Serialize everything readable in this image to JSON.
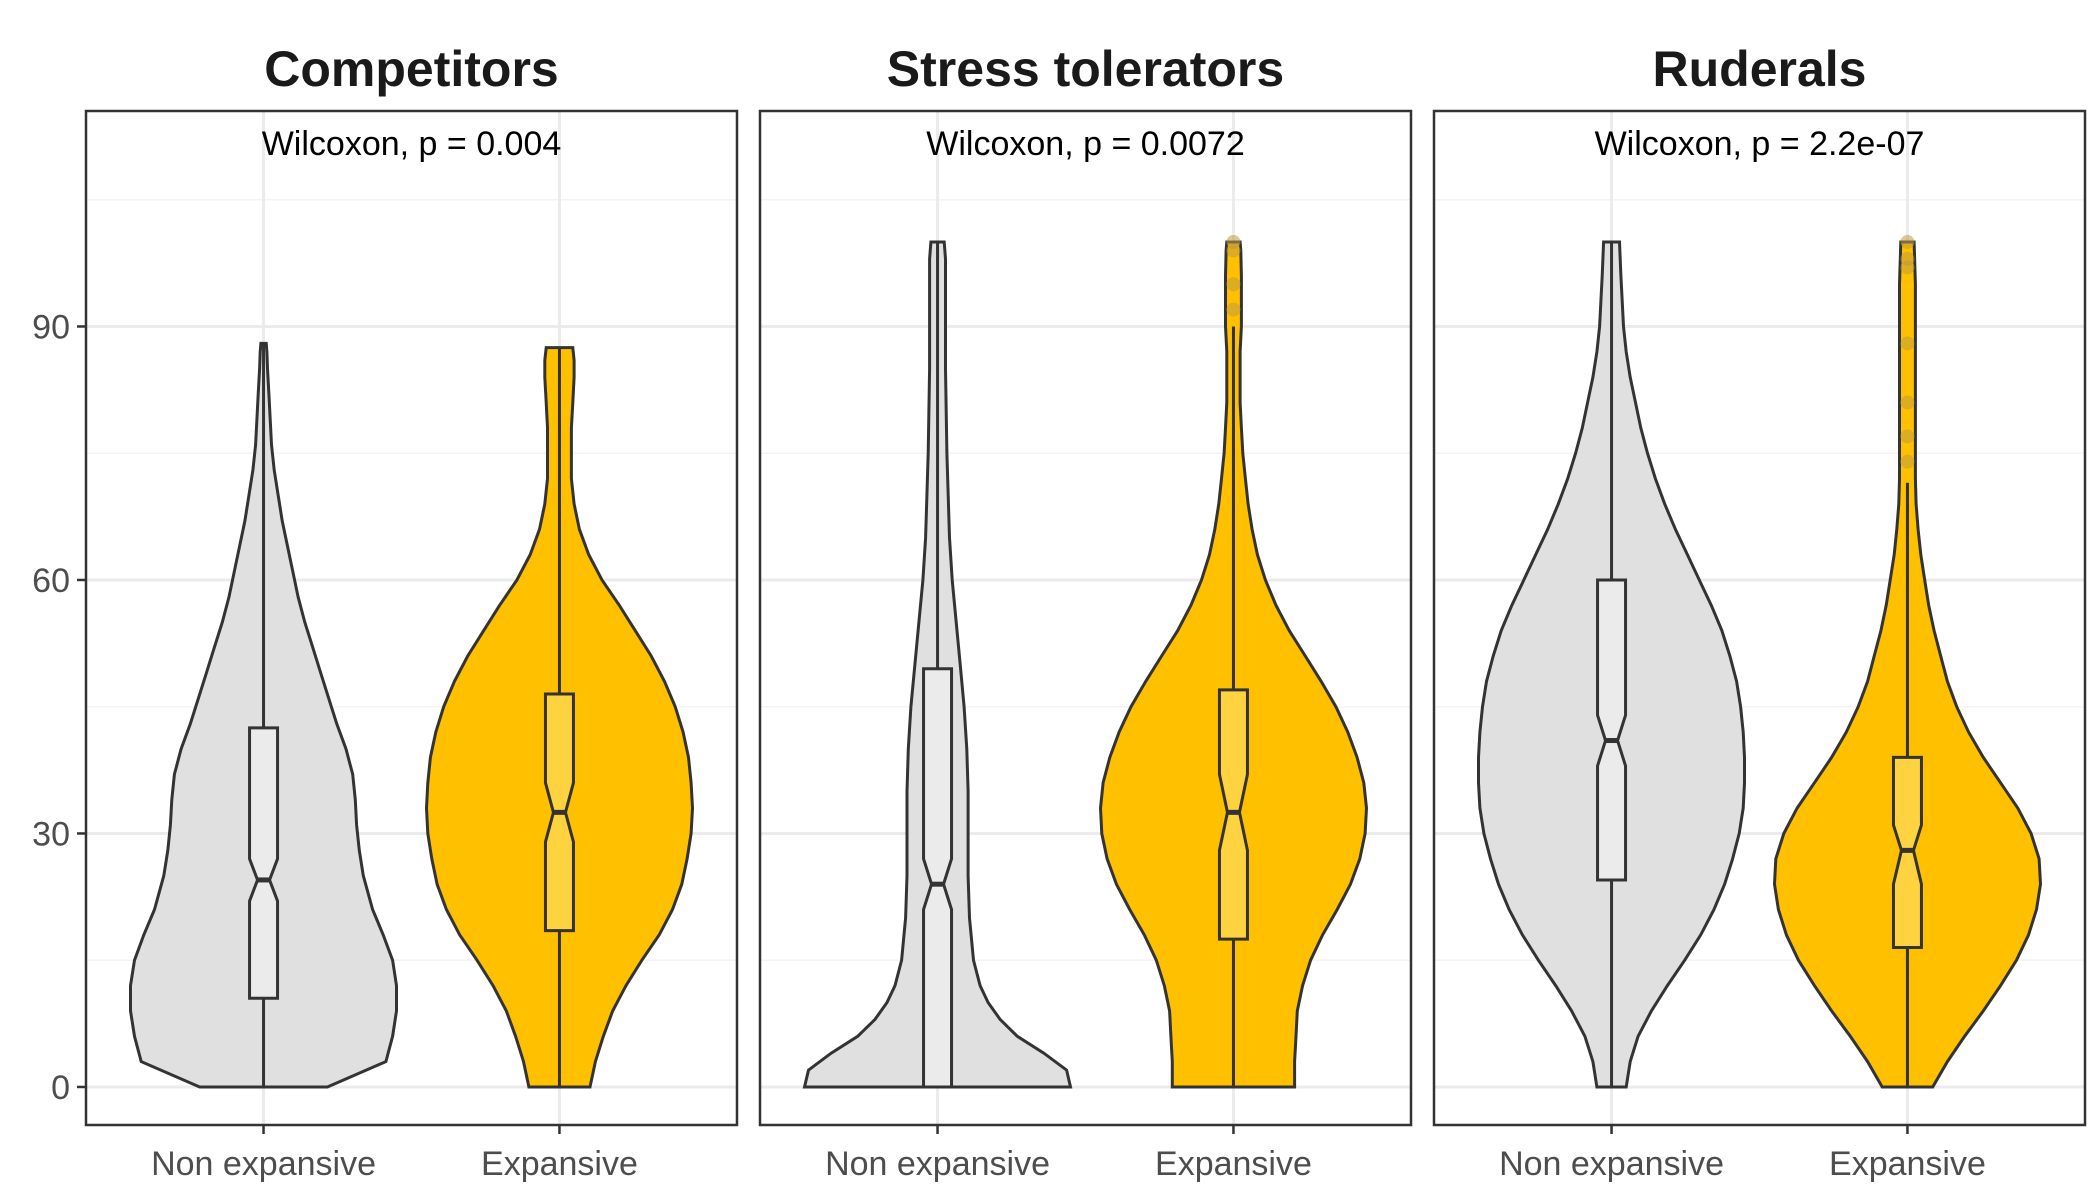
{
  "chart_data": [
    {
      "type": "violin",
      "title": "Competitors",
      "annotation": "Wilcoxon, p = 0.004",
      "categories": [
        "Non expansive",
        "Expansive"
      ],
      "ylim": [
        -4.5,
        115.5
      ],
      "yticks": [
        0,
        30,
        60,
        90
      ],
      "grid": true,
      "groups": [
        {
          "category": "Non expansive",
          "color": "#e0e0e0",
          "box": {
            "q1": 10.5,
            "median": 24.5,
            "q3": 42.5,
            "whisker_low": 0,
            "whisker_high": 88,
            "notch_low": 22,
            "notch_high": 27
          },
          "density": [
            [
              0,
              0.48
            ],
            [
              3,
              0.92
            ],
            [
              6,
              0.97
            ],
            [
              9,
              1.0
            ],
            [
              12,
              1.0
            ],
            [
              15,
              0.97
            ],
            [
              18,
              0.9
            ],
            [
              21,
              0.82
            ],
            [
              25,
              0.75
            ],
            [
              28,
              0.72
            ],
            [
              31,
              0.7
            ],
            [
              34,
              0.69
            ],
            [
              37,
              0.67
            ],
            [
              40,
              0.62
            ],
            [
              43,
              0.55
            ],
            [
              46,
              0.49
            ],
            [
              49,
              0.43
            ],
            [
              52,
              0.37
            ],
            [
              55,
              0.31
            ],
            [
              58,
              0.26
            ],
            [
              61,
              0.22
            ],
            [
              64,
              0.18
            ],
            [
              67,
              0.14
            ],
            [
              70,
              0.11
            ],
            [
              73,
              0.08
            ],
            [
              76,
              0.06
            ],
            [
              79,
              0.05
            ],
            [
              82,
              0.04
            ],
            [
              85,
              0.03
            ],
            [
              87,
              0.025
            ],
            [
              88,
              0.02
            ]
          ],
          "outliers": []
        },
        {
          "category": "Expansive",
          "color": "#ffc000",
          "box": {
            "q1": 18.5,
            "median": 32.5,
            "q3": 46.5,
            "whisker_low": 0,
            "whisker_high": 87.5,
            "notch_low": 29,
            "notch_high": 36
          },
          "density": [
            [
              0,
              0.23
            ],
            [
              3,
              0.27
            ],
            [
              6,
              0.33
            ],
            [
              9,
              0.4
            ],
            [
              12,
              0.5
            ],
            [
              15,
              0.62
            ],
            [
              18,
              0.75
            ],
            [
              21,
              0.85
            ],
            [
              24,
              0.92
            ],
            [
              27,
              0.96
            ],
            [
              30,
              0.99
            ],
            [
              33,
              1.0
            ],
            [
              36,
              0.99
            ],
            [
              39,
              0.97
            ],
            [
              42,
              0.93
            ],
            [
              45,
              0.87
            ],
            [
              48,
              0.79
            ],
            [
              51,
              0.69
            ],
            [
              54,
              0.57
            ],
            [
              57,
              0.45
            ],
            [
              60,
              0.32
            ],
            [
              63,
              0.22
            ],
            [
              66,
              0.15
            ],
            [
              69,
              0.11
            ],
            [
              72,
              0.09
            ],
            [
              75,
              0.09
            ],
            [
              78,
              0.09
            ],
            [
              81,
              0.1
            ],
            [
              84,
              0.11
            ],
            [
              86,
              0.11
            ],
            [
              87.5,
              0.1
            ]
          ],
          "outliers": []
        }
      ]
    },
    {
      "type": "violin",
      "title": "Stress tolerators",
      "annotation": "Wilcoxon, p = 0.0072",
      "categories": [
        "Non expansive",
        "Expansive"
      ],
      "ylim": [
        -4.5,
        115.5
      ],
      "yticks": [
        0,
        30,
        60,
        90
      ],
      "grid": true,
      "groups": [
        {
          "category": "Non expansive",
          "color": "#e0e0e0",
          "box": {
            "q1": 0,
            "median": 24,
            "q3": 49.5,
            "whisker_low": 0,
            "whisker_high": 100,
            "notch_low": 21,
            "notch_high": 27
          },
          "density": [
            [
              0,
              1.0
            ],
            [
              2,
              0.97
            ],
            [
              4,
              0.8
            ],
            [
              6,
              0.6
            ],
            [
              8,
              0.47
            ],
            [
              10,
              0.38
            ],
            [
              12,
              0.32
            ],
            [
              15,
              0.27
            ],
            [
              20,
              0.24
            ],
            [
              25,
              0.23
            ],
            [
              30,
              0.23
            ],
            [
              35,
              0.23
            ],
            [
              40,
              0.22
            ],
            [
              45,
              0.2
            ],
            [
              50,
              0.17
            ],
            [
              55,
              0.14
            ],
            [
              60,
              0.11
            ],
            [
              65,
              0.09
            ],
            [
              70,
              0.08
            ],
            [
              75,
              0.07
            ],
            [
              80,
              0.065
            ],
            [
              85,
              0.06
            ],
            [
              90,
              0.06
            ],
            [
              95,
              0.06
            ],
            [
              98,
              0.06
            ],
            [
              100,
              0.05
            ]
          ],
          "outliers": []
        },
        {
          "category": "Expansive",
          "color": "#ffc000",
          "box": {
            "q1": 17.5,
            "median": 32.5,
            "q3": 47,
            "whisker_low": 0,
            "whisker_high": 90,
            "notch_low": 28,
            "notch_high": 37
          },
          "density": [
            [
              0,
              0.46
            ],
            [
              3,
              0.46
            ],
            [
              6,
              0.47
            ],
            [
              9,
              0.48
            ],
            [
              12,
              0.52
            ],
            [
              15,
              0.58
            ],
            [
              18,
              0.67
            ],
            [
              21,
              0.78
            ],
            [
              24,
              0.88
            ],
            [
              27,
              0.95
            ],
            [
              30,
              0.99
            ],
            [
              33,
              1.0
            ],
            [
              36,
              0.98
            ],
            [
              39,
              0.93
            ],
            [
              42,
              0.86
            ],
            [
              45,
              0.77
            ],
            [
              48,
              0.66
            ],
            [
              51,
              0.54
            ],
            [
              54,
              0.42
            ],
            [
              57,
              0.32
            ],
            [
              60,
              0.24
            ],
            [
              63,
              0.18
            ],
            [
              66,
              0.14
            ],
            [
              69,
              0.11
            ],
            [
              72,
              0.09
            ],
            [
              75,
              0.07
            ],
            [
              78,
              0.06
            ],
            [
              81,
              0.05
            ],
            [
              84,
              0.05
            ],
            [
              87,
              0.05
            ],
            [
              90,
              0.06
            ],
            [
              93,
              0.06
            ],
            [
              96,
              0.06
            ],
            [
              99,
              0.055
            ],
            [
              100,
              0.05
            ]
          ],
          "outliers": [
            100,
            99,
            95,
            92
          ]
        }
      ]
    },
    {
      "type": "violin",
      "title": "Ruderals",
      "annotation": "Wilcoxon, p = 2.2e-07",
      "categories": [
        "Non expansive",
        "Expansive"
      ],
      "ylim": [
        -4.5,
        115.5
      ],
      "yticks": [
        0,
        30,
        60,
        90
      ],
      "grid": true,
      "groups": [
        {
          "category": "Non expansive",
          "color": "#e0e0e0",
          "box": {
            "q1": 24.5,
            "median": 41,
            "q3": 60,
            "whisker_low": 0,
            "whisker_high": 100,
            "notch_low": 38,
            "notch_high": 44
          },
          "density": [
            [
              0,
              0.11
            ],
            [
              3,
              0.14
            ],
            [
              6,
              0.2
            ],
            [
              9,
              0.3
            ],
            [
              12,
              0.42
            ],
            [
              15,
              0.55
            ],
            [
              18,
              0.67
            ],
            [
              21,
              0.77
            ],
            [
              24,
              0.85
            ],
            [
              27,
              0.91
            ],
            [
              30,
              0.96
            ],
            [
              33,
              0.99
            ],
            [
              36,
              1.0
            ],
            [
              39,
              1.0
            ],
            [
              42,
              0.99
            ],
            [
              45,
              0.97
            ],
            [
              48,
              0.94
            ],
            [
              51,
              0.89
            ],
            [
              54,
              0.83
            ],
            [
              57,
              0.75
            ],
            [
              60,
              0.66
            ],
            [
              63,
              0.57
            ],
            [
              66,
              0.48
            ],
            [
              69,
              0.4
            ],
            [
              72,
              0.33
            ],
            [
              75,
              0.27
            ],
            [
              78,
              0.22
            ],
            [
              81,
              0.18
            ],
            [
              84,
              0.14
            ],
            [
              87,
              0.11
            ],
            [
              90,
              0.09
            ],
            [
              93,
              0.08
            ],
            [
              96,
              0.07
            ],
            [
              98,
              0.065
            ],
            [
              100,
              0.06
            ]
          ],
          "outliers": []
        },
        {
          "category": "Expansive",
          "color": "#ffc000",
          "box": {
            "q1": 16.5,
            "median": 28,
            "q3": 39,
            "whisker_low": 0,
            "whisker_high": 71.5,
            "notch_low": 24,
            "notch_high": 31
          },
          "density": [
            [
              0,
              0.19
            ],
            [
              3,
              0.3
            ],
            [
              6,
              0.43
            ],
            [
              9,
              0.57
            ],
            [
              12,
              0.7
            ],
            [
              15,
              0.82
            ],
            [
              18,
              0.91
            ],
            [
              21,
              0.97
            ],
            [
              24,
              1.0
            ],
            [
              27,
              0.99
            ],
            [
              30,
              0.93
            ],
            [
              33,
              0.83
            ],
            [
              36,
              0.7
            ],
            [
              39,
              0.57
            ],
            [
              42,
              0.46
            ],
            [
              45,
              0.37
            ],
            [
              48,
              0.3
            ],
            [
              51,
              0.25
            ],
            [
              54,
              0.2
            ],
            [
              57,
              0.16
            ],
            [
              60,
              0.13
            ],
            [
              63,
              0.1
            ],
            [
              66,
              0.08
            ],
            [
              69,
              0.065
            ],
            [
              72,
              0.06
            ],
            [
              75,
              0.06
            ],
            [
              80,
              0.06
            ],
            [
              85,
              0.06
            ],
            [
              90,
              0.06
            ],
            [
              95,
              0.06
            ],
            [
              100,
              0.05
            ]
          ],
          "outliers": [
            100,
            98,
            97,
            88,
            81,
            77,
            74
          ]
        }
      ]
    }
  ]
}
